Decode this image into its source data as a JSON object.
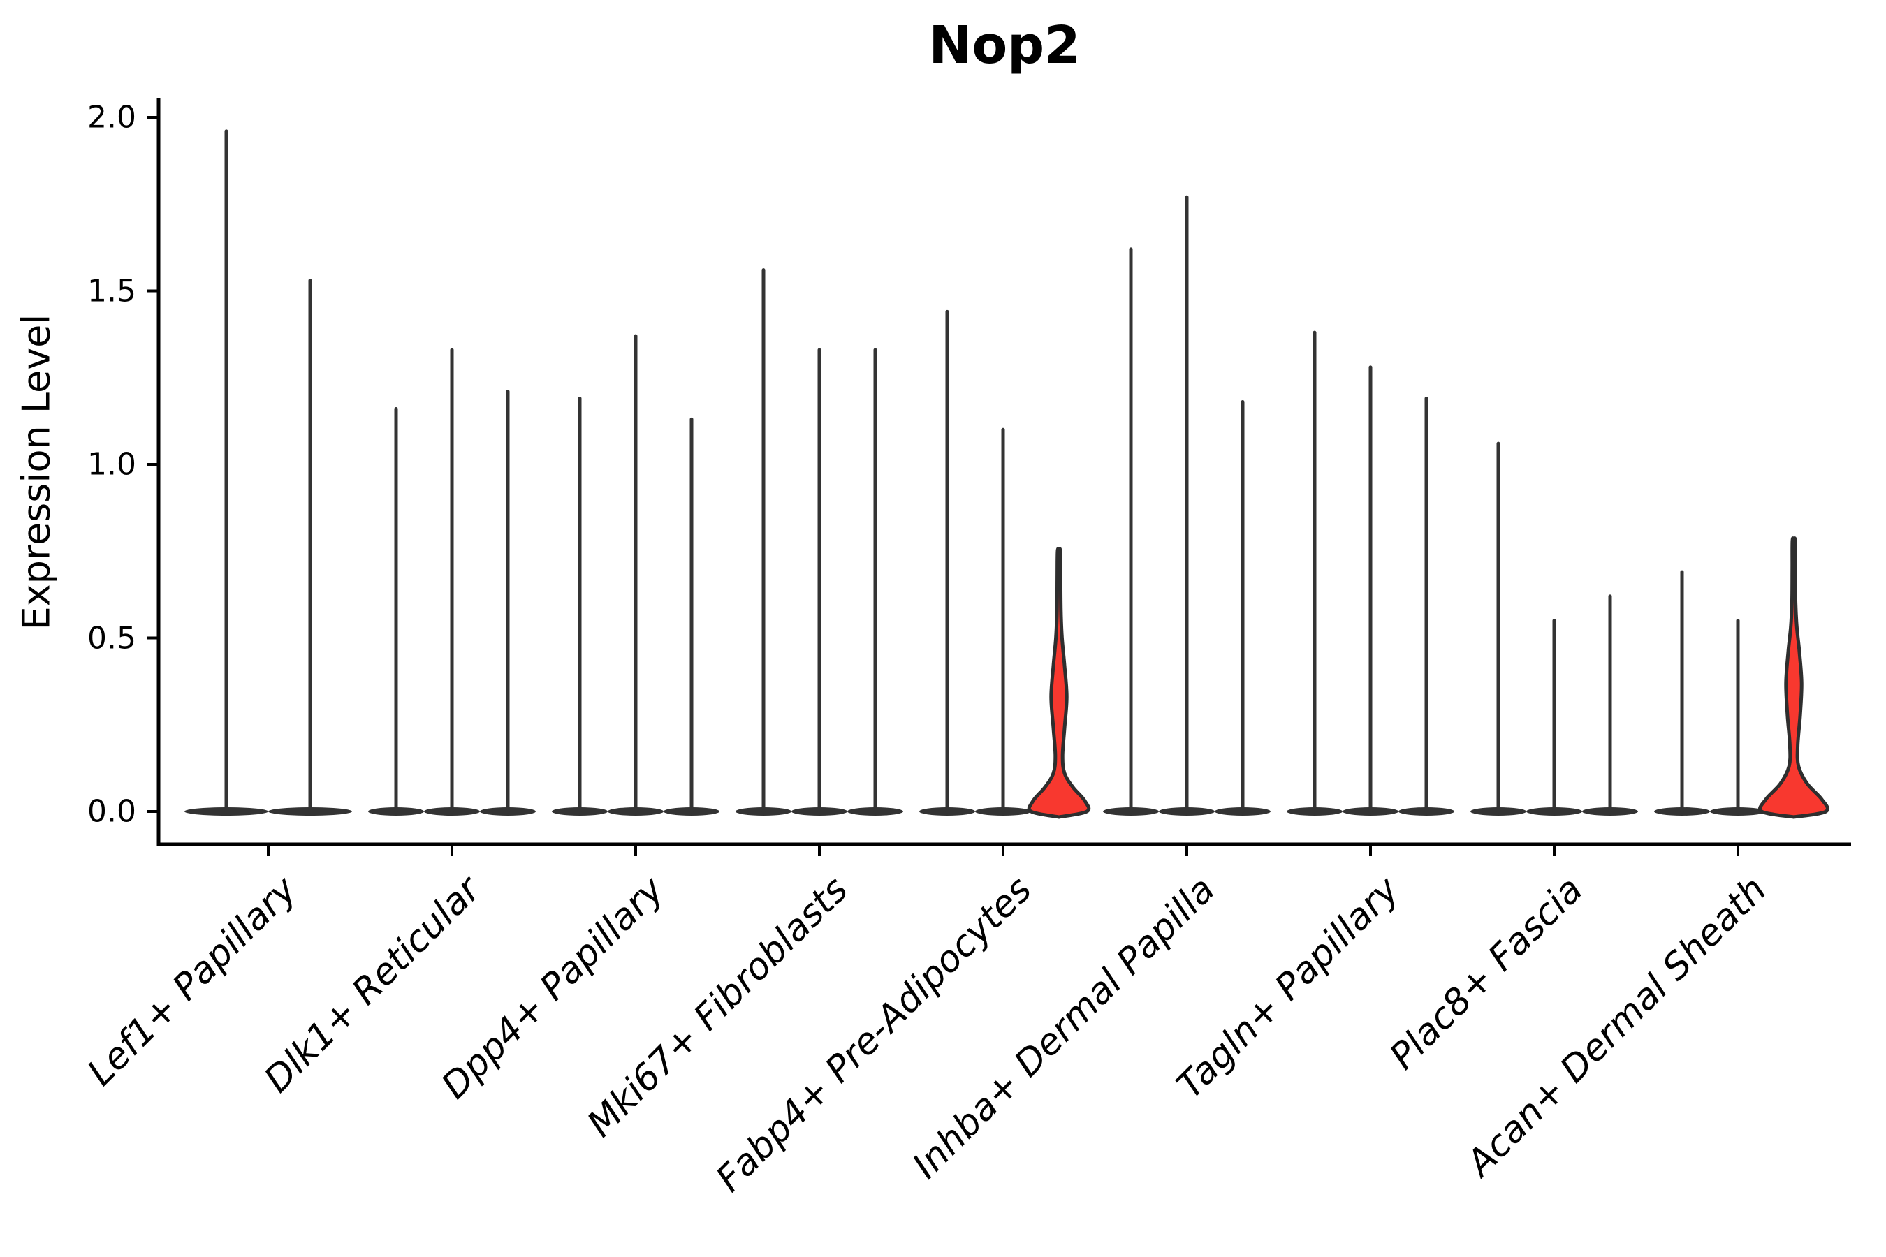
{
  "chart_data": {
    "type": "violin",
    "title": "Nop2",
    "ylabel": "Expression Level",
    "xlabel": "",
    "ylim": [
      0.0,
      2.0
    ],
    "yticks": [
      0.0,
      0.5,
      1.0,
      1.5,
      2.0
    ],
    "ytick_labels": [
      "0.0",
      "0.5",
      "1.0",
      "1.5",
      "2.0"
    ],
    "legend": "none",
    "grid": false,
    "colors": {
      "spike": "#333333",
      "violin_outline": "#2e2e2e",
      "highlight_fill": "#F8382F",
      "axis": "#000000",
      "background": "#ffffff"
    },
    "groups": [
      {
        "label": "Lef1+ Papillary",
        "violins": [
          {
            "max": 1.96
          },
          {
            "max": 1.53
          }
        ]
      },
      {
        "label": "Dlk1+ Reticular",
        "violins": [
          {
            "max": 1.16
          },
          {
            "max": 1.33
          },
          {
            "max": 1.21
          }
        ]
      },
      {
        "label": "Dpp4+ Papillary",
        "violins": [
          {
            "max": 1.19
          },
          {
            "max": 1.37
          },
          {
            "max": 1.13
          }
        ]
      },
      {
        "label": "Mki67+ Fibroblasts",
        "violins": [
          {
            "max": 1.56
          },
          {
            "max": 1.33
          },
          {
            "max": 1.33
          }
        ]
      },
      {
        "label": "Fabp4+ Pre-Adipocytes",
        "violins": [
          {
            "max": 1.44
          },
          {
            "max": 1.1
          },
          {
            "max": 0.75,
            "highlight": true,
            "profile": [
              [
                0.0,
                1.0
              ],
              [
                0.03,
                0.93
              ],
              [
                0.07,
                0.5
              ],
              [
                0.11,
                0.2
              ],
              [
                0.16,
                0.13
              ],
              [
                0.24,
                0.2
              ],
              [
                0.33,
                0.28
              ],
              [
                0.42,
                0.2
              ],
              [
                0.5,
                0.11
              ],
              [
                0.58,
                0.07
              ],
              [
                0.68,
                0.06
              ],
              [
                0.75,
                0.05
              ]
            ]
          }
        ]
      },
      {
        "label": "Inhba+ Dermal Papilla",
        "violins": [
          {
            "max": 1.62
          },
          {
            "max": 1.77
          },
          {
            "max": 1.18
          }
        ]
      },
      {
        "label": "Tagln+ Papillary",
        "violins": [
          {
            "max": 1.38
          },
          {
            "max": 1.28
          },
          {
            "max": 1.19
          }
        ]
      },
      {
        "label": "Plac8+ Fascia",
        "violins": [
          {
            "max": 1.06
          },
          {
            "max": 0.55
          },
          {
            "max": 0.62
          }
        ]
      },
      {
        "label": "Acan+ Dermal Sheath",
        "violins": [
          {
            "max": 0.69
          },
          {
            "max": 0.55
          },
          {
            "max": 0.78,
            "highlight": true,
            "profile": [
              [
                0.0,
                1.15
              ],
              [
                0.035,
                1.0
              ],
              [
                0.08,
                0.48
              ],
              [
                0.13,
                0.17
              ],
              [
                0.19,
                0.14
              ],
              [
                0.28,
                0.23
              ],
              [
                0.37,
                0.28
              ],
              [
                0.46,
                0.2
              ],
              [
                0.53,
                0.11
              ],
              [
                0.6,
                0.065
              ],
              [
                0.7,
                0.055
              ],
              [
                0.78,
                0.05
              ]
            ]
          }
        ]
      }
    ]
  }
}
